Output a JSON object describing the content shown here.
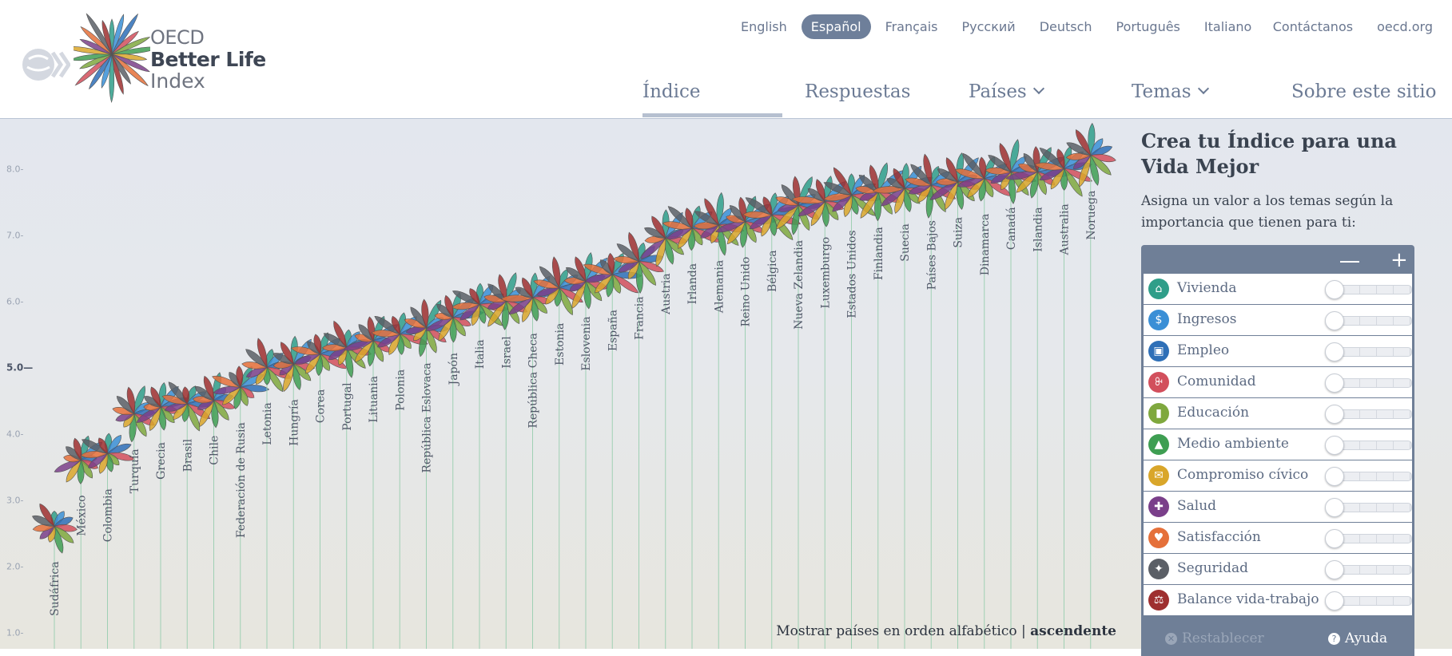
{
  "logo": {
    "line1": "OECD",
    "line2": "Better Life",
    "line3": "Index"
  },
  "languages": [
    {
      "label": "English",
      "active": false
    },
    {
      "label": "Español",
      "active": true
    },
    {
      "label": "Français",
      "active": false
    },
    {
      "label": "Русский",
      "active": false
    },
    {
      "label": "Deutsch",
      "active": false
    },
    {
      "label": "Português",
      "active": false
    },
    {
      "label": "Italiano",
      "active": false
    }
  ],
  "util_links": [
    "Contáctanos",
    "oecd.org"
  ],
  "nav": [
    {
      "label": "Índice",
      "dropdown": false,
      "active": true
    },
    {
      "label": "Respuestas",
      "dropdown": false,
      "active": false
    },
    {
      "label": "Países",
      "dropdown": true,
      "active": false
    },
    {
      "label": "Temas",
      "dropdown": true,
      "active": false
    },
    {
      "label": "Sobre este sitio",
      "dropdown": false,
      "active": false
    }
  ],
  "chart_data": {
    "type": "scatter",
    "y_ticks": [
      "1.0",
      "2.0",
      "3.0",
      "4.0",
      "5.0",
      "6.0",
      "7.0",
      "8.0"
    ],
    "ylim": [
      0.75,
      8.75
    ],
    "categories": [
      "Sudáfrica",
      "México",
      "Colombia",
      "Turquía",
      "Grecia",
      "Brasil",
      "Chile",
      "Federación de Rusia",
      "Letonia",
      "Hungría",
      "Corea",
      "Portugal",
      "Lituania",
      "Polonia",
      "República Eslovaca",
      "Japón",
      "Italia",
      "Israel",
      "República Checa",
      "Estonia",
      "Eslovenia",
      "España",
      "Francia",
      "Austria",
      "Irlanda",
      "Alemania",
      "Reino Unido",
      "Bélgica",
      "Nueva Zelandia",
      "Luxemburgo",
      "Estados Unidos",
      "Finlandia",
      "Suecia",
      "Países Bajos",
      "Suiza",
      "Dinamarca",
      "Canadá",
      "Islandia",
      "Australia",
      "Noruega"
    ],
    "values": [
      2.6,
      3.6,
      3.7,
      4.3,
      4.4,
      4.45,
      4.5,
      4.7,
      5.0,
      5.05,
      5.2,
      5.3,
      5.4,
      5.5,
      5.6,
      5.75,
      5.95,
      6.0,
      6.05,
      6.2,
      6.3,
      6.4,
      6.6,
      6.95,
      7.1,
      7.15,
      7.2,
      7.3,
      7.45,
      7.5,
      7.6,
      7.65,
      7.7,
      7.75,
      7.8,
      7.85,
      7.95,
      7.95,
      8.0,
      8.2
    ]
  },
  "colors": [
    "#2f9e89",
    "#3a8fd6",
    "#2e6fb7",
    "#d24f5c",
    "#7fa83e",
    "#3e9e52",
    "#d9a62a",
    "#7a3f8a",
    "#e5703a",
    "#5b5f66",
    "#9e2f2f"
  ],
  "sort": {
    "text": "Mostrar países en orden alfabético",
    "sep": "|",
    "link": "ascendente"
  },
  "panel": {
    "title": "Crea tu Índice para una Vida Mejor",
    "subtitle": "Asigna un valor a los temas según la importancia que tienen para ti:",
    "minus": "−",
    "plus": "+",
    "topics": [
      {
        "label": "Vivienda",
        "icon": "house-icon",
        "glyph": "⌂",
        "color": "#2f9e89",
        "level": 0
      },
      {
        "label": "Ingresos",
        "icon": "money-icon",
        "glyph": "$",
        "color": "#3a8fd6",
        "level": 0
      },
      {
        "label": "Empleo",
        "icon": "briefcase-icon",
        "glyph": "▣",
        "color": "#2e6fb7",
        "level": 0
      },
      {
        "label": "Comunidad",
        "icon": "people-icon",
        "glyph": "ꔬ",
        "color": "#d24f5c",
        "level": 0
      },
      {
        "label": "Educación",
        "icon": "book-icon",
        "glyph": "▮",
        "color": "#7fa83e",
        "level": 0
      },
      {
        "label": "Medio ambiente",
        "icon": "tree-icon",
        "glyph": "▲",
        "color": "#3e9e52",
        "level": 0
      },
      {
        "label": "Compromiso cívico",
        "icon": "envelope-icon",
        "glyph": "✉",
        "color": "#d9a62a",
        "level": 0
      },
      {
        "label": "Salud",
        "icon": "cross-icon",
        "glyph": "✚",
        "color": "#7a3f8a",
        "level": 0
      },
      {
        "label": "Satisfacción",
        "icon": "heart-icon",
        "glyph": "♥",
        "color": "#e5703a",
        "level": 0
      },
      {
        "label": "Seguridad",
        "icon": "runner-icon",
        "glyph": "✦",
        "color": "#5b5f66",
        "level": 0
      },
      {
        "label": "Balance vida-trabajo",
        "icon": "scale-icon",
        "glyph": "⚖",
        "color": "#9e2f2f",
        "level": 0
      }
    ],
    "reset": "Restablecer",
    "help": "Ayuda"
  }
}
